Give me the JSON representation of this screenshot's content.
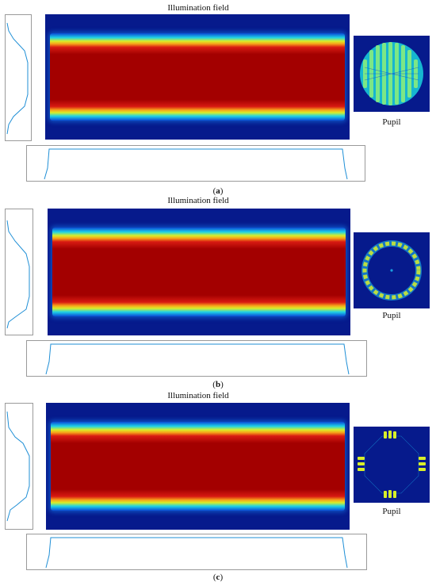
{
  "panels": [
    {
      "title": "Illumination field",
      "pupil_label": "Pupil",
      "caption_open": "(",
      "caption_letter": "a",
      "caption_close": ")"
    },
    {
      "title": "Illumination field",
      "pupil_label": "Pupil",
      "caption_open": "(",
      "caption_letter": "b",
      "caption_close": ")"
    },
    {
      "title": "Illumination field",
      "pupil_label": "Pupil",
      "caption_open": "(",
      "caption_letter": "c",
      "caption_close": ")"
    }
  ],
  "colors": {
    "field_background": "#061a8c",
    "band_core": "#a30000",
    "profile_line": "#1f8fd6"
  },
  "icons": [
    "pupil-icon"
  ]
}
